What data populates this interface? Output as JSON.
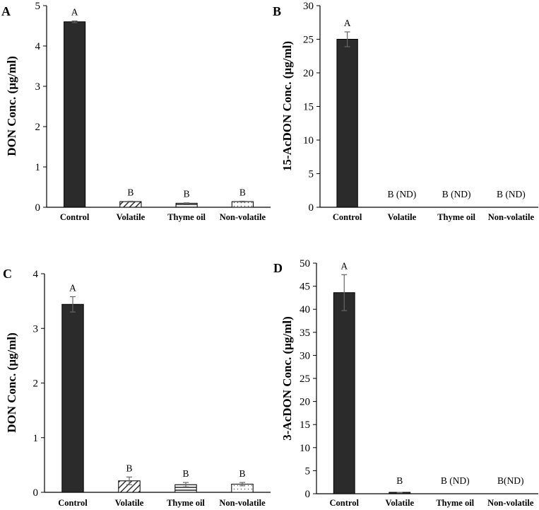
{
  "colors": {
    "dark_bar": "#2b2b2b",
    "axis": "#000000",
    "pattern_line": "#333333",
    "dots": "#555555"
  },
  "chart_data": [
    {
      "panel": "A",
      "type": "bar",
      "ylabel": "DON Conc. (µg/ml)",
      "categories": [
        "Control",
        "Volatile",
        "Thyme oil",
        "Non-volatile"
      ],
      "values": [
        4.6,
        0.14,
        0.1,
        0.14
      ],
      "errors": [
        0.02,
        0.01,
        0.01,
        0.01
      ],
      "fills": [
        "dark",
        "hatch",
        "stripe",
        "dots"
      ],
      "significance": [
        "A",
        "B",
        "B",
        "B"
      ],
      "ylim": [
        0,
        5
      ],
      "yticks": [
        0,
        1,
        2,
        3,
        4,
        5
      ]
    },
    {
      "panel": "B",
      "type": "bar",
      "ylabel": "15-AcDON Conc. (µg/ml)",
      "categories": [
        "Control",
        "Volatile",
        "Thyme oil",
        "Non-volatile"
      ],
      "values": [
        25,
        0,
        0,
        0
      ],
      "errors": [
        1.1,
        0,
        0,
        0
      ],
      "fills": [
        "dark",
        "none",
        "none",
        "none"
      ],
      "significance": [
        "A",
        "B (ND)",
        "B (ND)",
        "B (ND)"
      ],
      "ylim": [
        0,
        30
      ],
      "yticks": [
        0,
        5,
        10,
        15,
        20,
        25,
        30
      ]
    },
    {
      "panel": "C",
      "type": "bar",
      "ylabel": "DON Conc. (µg/ml)",
      "categories": [
        "Control",
        "Volatile",
        "Thyme oil",
        "Non-volatile"
      ],
      "values": [
        3.44,
        0.21,
        0.14,
        0.15
      ],
      "errors": [
        0.14,
        0.07,
        0.04,
        0.03
      ],
      "fills": [
        "dark",
        "hatch",
        "stripe",
        "dots"
      ],
      "significance": [
        "A",
        "B",
        "B",
        "B"
      ],
      "ylim": [
        0,
        4
      ],
      "yticks": [
        0,
        1,
        2,
        3,
        4
      ]
    },
    {
      "panel": "D",
      "type": "bar",
      "ylabel": "3-AcDON Conc. (µg/ml)",
      "categories": [
        "Control",
        "Volatile",
        "Thyme oil",
        "Non-volatile"
      ],
      "values": [
        43.6,
        0.25,
        0,
        0
      ],
      "errors": [
        3.9,
        0.05,
        0,
        0
      ],
      "fills": [
        "dark",
        "dark",
        "none",
        "none"
      ],
      "significance": [
        "A",
        "B",
        "B (ND)",
        "B(ND)"
      ],
      "ylim": [
        0,
        50
      ],
      "yticks": [
        0,
        5,
        10,
        15,
        20,
        25,
        30,
        35,
        40,
        45,
        50
      ]
    }
  ]
}
